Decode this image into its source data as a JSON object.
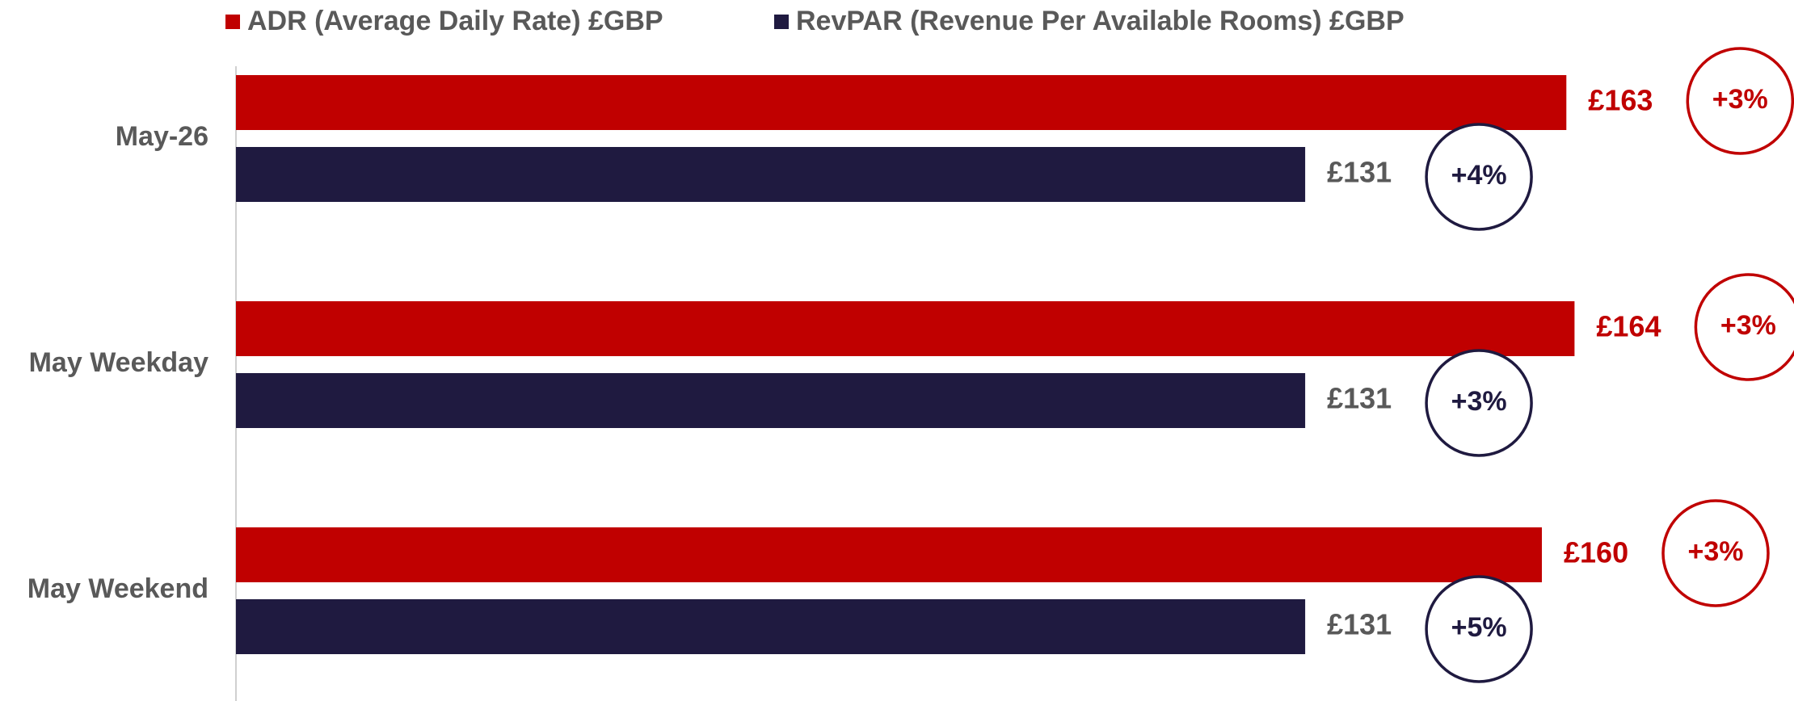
{
  "chart_data": {
    "type": "hbar",
    "categories": [
      "May-26",
      "May Weekday",
      "May Weekend"
    ],
    "series": [
      {
        "name": "ADR (Average Daily Rate) £GBP",
        "color": "#c00000",
        "values": [
          163,
          164,
          160
        ],
        "value_labels": [
          "£163",
          "£164",
          "£160"
        ],
        "change_labels": [
          "+3%",
          "+3%",
          "+3%"
        ]
      },
      {
        "name": "RevPAR (Revenue Per Available Rooms) £GBP",
        "color": "#1f1a40",
        "values": [
          131,
          131,
          131
        ],
        "value_labels": [
          "£131",
          "£131",
          "£131"
        ],
        "change_labels": [
          "+4%",
          "+3%",
          "+5%"
        ]
      }
    ],
    "xlim": [
      0,
      190
    ],
    "legend": "top"
  }
}
